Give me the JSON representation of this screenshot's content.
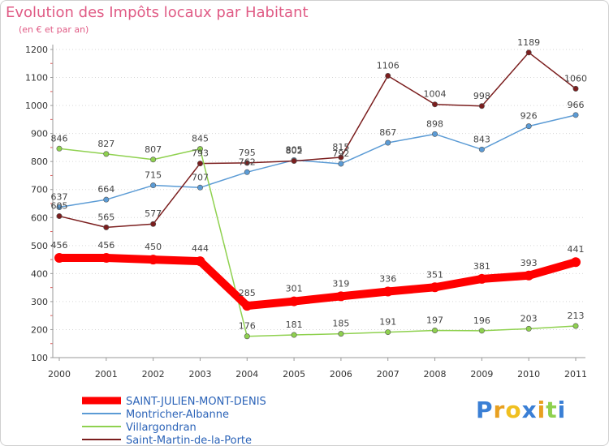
{
  "chart_data": {
    "type": "line",
    "title": "Evolution des Impôts locaux par Habitant",
    "subtitle": "(en € et par an)",
    "x": [
      "2000",
      "2001",
      "2002",
      "2003",
      "2004",
      "2005",
      "2006",
      "2007",
      "2008",
      "2009",
      "2010",
      "2011"
    ],
    "yticks": [
      100,
      200,
      300,
      400,
      500,
      600,
      700,
      800,
      900,
      1000,
      1100,
      1200
    ],
    "ylim": [
      100,
      1200
    ],
    "grid": "horizontal-dotted",
    "legend_position": "bottom-left",
    "series": [
      {
        "name": "SAINT-JULIEN-MONT-DENIS",
        "color": "#ff0000",
        "values": [
          456,
          456,
          450,
          444,
          285,
          301,
          319,
          336,
          351,
          381,
          393,
          441
        ]
      },
      {
        "name": "Montricher-Albanne",
        "color": "#5b9bd5",
        "values": [
          637,
          664,
          715,
          707,
          762,
          805,
          792,
          867,
          898,
          843,
          926,
          966
        ]
      },
      {
        "name": "Villargondran",
        "color": "#8fd14f",
        "values": [
          846,
          827,
          807,
          845,
          176,
          181,
          185,
          191,
          197,
          196,
          203,
          213
        ]
      },
      {
        "name": "Saint-Martin-de-la-Porte",
        "color": "#7b1e1e",
        "values": [
          605,
          565,
          577,
          793,
          795,
          802,
          815,
          1106,
          1004,
          998,
          1189,
          1060
        ]
      }
    ]
  },
  "logo": {
    "letters": [
      "P",
      "r",
      "o",
      "x",
      "i",
      "t",
      "i"
    ],
    "colors": [
      "#3a7fd5",
      "#e8a020",
      "#f0c020",
      "#3a7fd5",
      "#e8a020",
      "#8fd14f",
      "#3a7fd5"
    ]
  }
}
